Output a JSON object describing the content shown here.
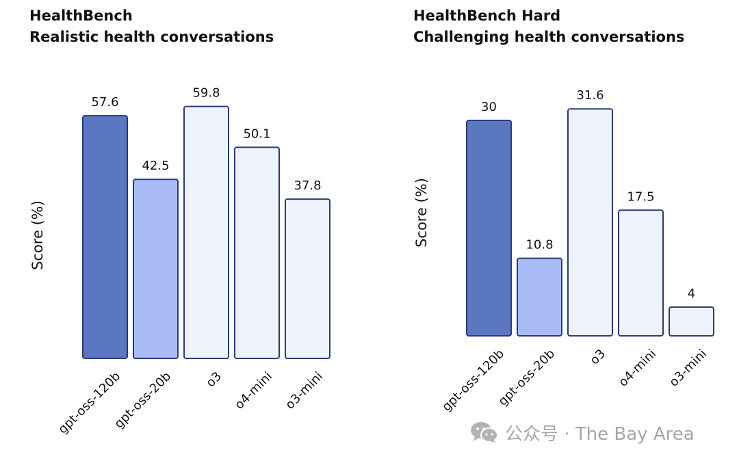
{
  "chart_data": [
    {
      "type": "bar",
      "title": "HealthBench",
      "subtitle": "Realistic health conversations",
      "xlabel": "",
      "ylabel": "Score (%)",
      "categories": [
        "gpt-oss-120b",
        "gpt-oss-20b",
        "o3",
        "o4-mini",
        "o3-mini"
      ],
      "values": [
        57.6,
        42.5,
        59.8,
        50.1,
        37.8
      ],
      "value_labels": [
        "57.6",
        "42.5",
        "59.8",
        "50.1",
        "37.8"
      ],
      "bar_colors": [
        "#5b77c2",
        "#a9bcf5",
        "#eef3fc",
        "#eef3fc",
        "#eef3fc"
      ],
      "grid": false,
      "legend": "none"
    },
    {
      "type": "bar",
      "title": "HealthBench Hard",
      "subtitle": "Challenging health conversations",
      "xlabel": "",
      "ylabel": "Score (%)",
      "categories": [
        "gpt-oss-120b",
        "gpt-oss-20b",
        "o3",
        "o4-mini",
        "o3-mini"
      ],
      "values": [
        30,
        10.8,
        31.6,
        17.5,
        4
      ],
      "value_labels": [
        "30",
        "10.8",
        "31.6",
        "17.5",
        "4"
      ],
      "bar_colors": [
        "#5b77c2",
        "#a9bcf5",
        "#eef3fc",
        "#eef3fc",
        "#eef3fc"
      ],
      "grid": false,
      "legend": "none"
    }
  ],
  "watermark": {
    "text": "公众号 · The Bay Area",
    "icon": "wechat-icon",
    "color": "#a6a6a6"
  },
  "colors": {
    "bar_outline": "#2b3b73",
    "text": "#111111"
  }
}
